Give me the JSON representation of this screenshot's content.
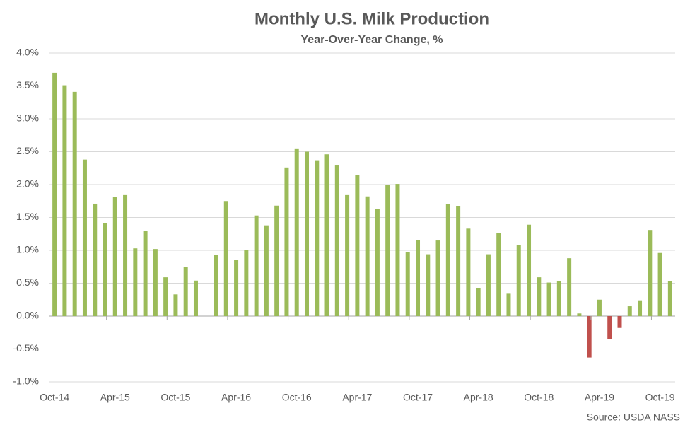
{
  "chart_data": {
    "type": "bar",
    "title": "Monthly U.S. Milk Production",
    "subtitle": "Year-Over-Year Change, %",
    "source": "Source: USDA NASS",
    "categories": [
      "Oct-14",
      null,
      null,
      null,
      null,
      null,
      "Apr-15",
      null,
      null,
      null,
      null,
      null,
      "Oct-15",
      null,
      null,
      null,
      null,
      null,
      "Apr-16",
      null,
      null,
      null,
      null,
      null,
      "Oct-16",
      null,
      null,
      null,
      null,
      null,
      "Apr-17",
      null,
      null,
      null,
      null,
      null,
      "Oct-17",
      null,
      null,
      null,
      null,
      null,
      "Apr-18",
      null,
      null,
      null,
      null,
      null,
      "Oct-18",
      null,
      null,
      null,
      null,
      null,
      "Apr-19",
      null,
      null,
      null,
      null,
      null,
      "Oct-19",
      null
    ],
    "values": [
      3.7,
      3.51,
      3.41,
      2.38,
      1.71,
      1.41,
      1.81,
      1.84,
      1.03,
      1.3,
      1.02,
      0.59,
      0.33,
      0.75,
      0.54,
      0,
      0.93,
      1.75,
      0.85,
      1.0,
      1.53,
      1.38,
      1.68,
      2.26,
      2.55,
      2.5,
      2.37,
      2.46,
      2.29,
      1.84,
      2.15,
      1.82,
      1.63,
      2.0,
      2.01,
      0.97,
      1.16,
      0.94,
      1.15,
      1.7,
      1.67,
      1.33,
      0.43,
      0.94,
      1.26,
      0.34,
      1.08,
      1.39,
      0.59,
      0.51,
      0.53,
      0.88,
      0.04,
      -0.63,
      0.25,
      -0.35,
      -0.18,
      0.15,
      0.24,
      1.31,
      0.96,
      0.53
    ],
    "color": "#9bbb59",
    "negative_color": "#c0504d",
    "ylim": [
      -1.0,
      4.0
    ],
    "yticks": [
      {
        "value": -1.0,
        "label": "-1.0%"
      },
      {
        "value": -0.5,
        "label": "-0.5%"
      },
      {
        "value": 0,
        "label": "0.0%"
      },
      {
        "value": 0.5,
        "label": "0.5%"
      },
      {
        "value": 1.0,
        "label": "1.0%"
      },
      {
        "value": 1.5,
        "label": "1.5%"
      },
      {
        "value": 2.0,
        "label": "2.0%"
      },
      {
        "value": 2.5,
        "label": "2.5%"
      },
      {
        "value": 3.0,
        "label": "3.0%"
      },
      {
        "value": 3.5,
        "label": "3.5%"
      },
      {
        "value": 4.0,
        "label": "4.0%"
      }
    ],
    "grid": true
  }
}
